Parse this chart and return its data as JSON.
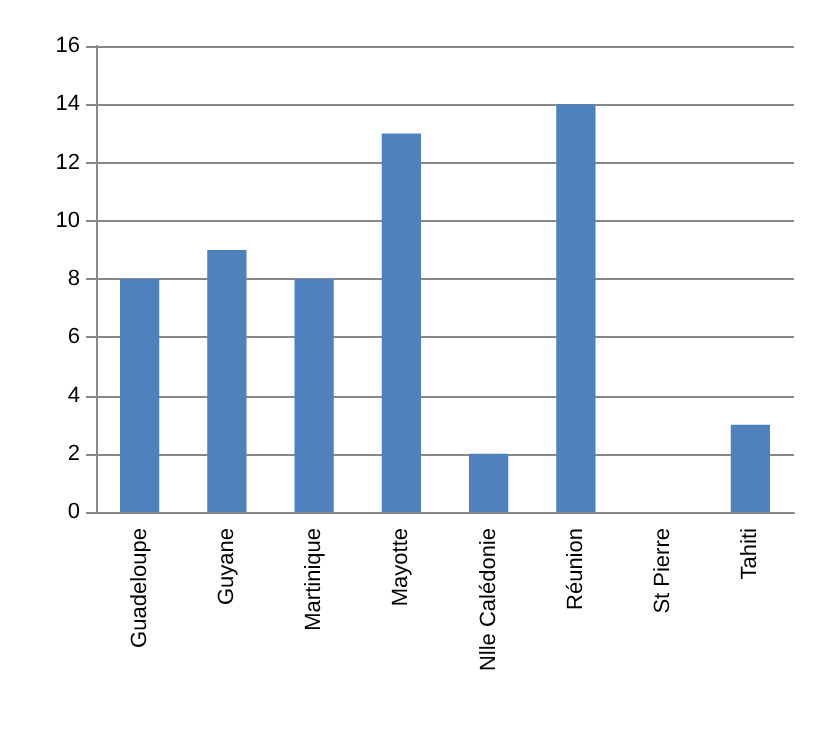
{
  "chart_data": {
    "type": "bar",
    "categories": [
      "Guadeloupe",
      "Guyane",
      "Martinique",
      "Mayotte",
      "Nlle Calédonie",
      "Réunion",
      "St Pierre",
      "Tahiti"
    ],
    "values": [
      8,
      9,
      8,
      13,
      2,
      14,
      0,
      3
    ],
    "color": "#4f81bd",
    "ylim": [
      0,
      16
    ],
    "yticks": [
      0,
      2,
      4,
      6,
      8,
      10,
      12,
      14,
      16
    ],
    "grid": "y"
  }
}
